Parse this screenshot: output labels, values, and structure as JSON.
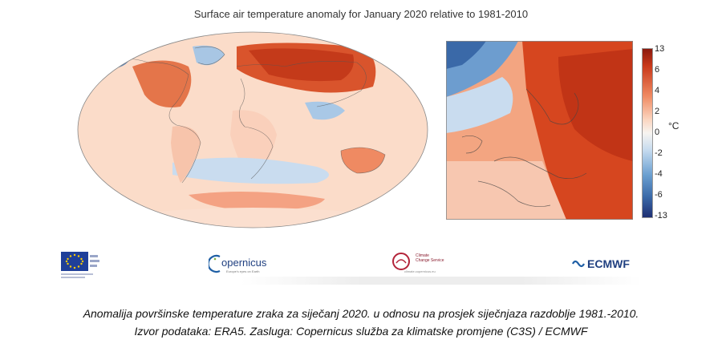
{
  "title": "Surface air temperature anomaly for January 2020 relative to 1981-2010",
  "colorbar": {
    "ticks": [
      "13",
      "6",
      "4",
      "2",
      "0",
      "-2",
      "-4",
      "-6",
      "-13"
    ],
    "unit": "°C"
  },
  "logos": {
    "ec": "European Commission",
    "copernicus": "opernicus",
    "copernicus_sub": "Europe's eyes on Earth",
    "c3s_line1": "Climate",
    "c3s_line2": "Change Service",
    "c3s_line3": "climate.copernicus.eu",
    "ecmwf": "ECMWF"
  },
  "caption": {
    "line1": "Anomalija površinske temperature zraka za siječanj 2020. u odnosu na prosjek siječnjaza razdoblje 1981.-2010.",
    "line2": "Izvor podataka: ERA5. Zasluga: Copernicus služba za klimatske promjene (C3S) / ECMWF"
  },
  "colors": {
    "warm_strong": "#c8381a",
    "warm": "#ef8a62",
    "warm_light": "#fbd5c0",
    "neutral": "#f7f4f0",
    "cool_light": "#c6dbef",
    "cool": "#6a9fd0",
    "cool_strong": "#1f4e8c"
  }
}
